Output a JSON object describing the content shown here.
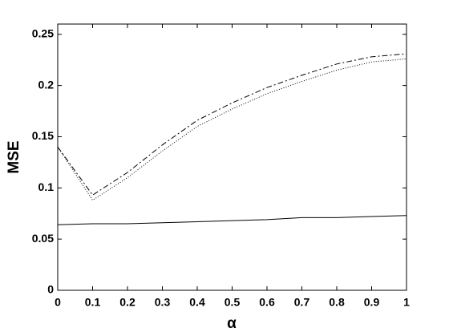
{
  "chart_data": {
    "type": "line",
    "x_label": "α",
    "y_label": "MSE",
    "x": [
      0,
      0.1,
      0.2,
      0.3,
      0.4,
      0.5,
      0.6,
      0.7,
      0.8,
      0.9,
      1
    ],
    "series": [
      {
        "color": "#000000",
        "dash": "dashed",
        "values": [
          0.14,
          0.093,
          0.115,
          0.142,
          0.166,
          0.183,
          0.198,
          0.21,
          0.221,
          0.228,
          0.231
        ]
      },
      {
        "color": "#000000",
        "dash": "dotted",
        "values": [
          0.14,
          0.088,
          0.11,
          0.136,
          0.16,
          0.177,
          0.192,
          0.204,
          0.215,
          0.223,
          0.226
        ]
      },
      {
        "color": "#000000",
        "dash": "solid",
        "values": [
          0.064,
          0.065,
          0.065,
          0.066,
          0.067,
          0.068,
          0.069,
          0.071,
          0.071,
          0.072,
          0.073
        ]
      }
    ],
    "xlim": [
      0,
      1
    ],
    "xticks": [
      0,
      0.1,
      0.2,
      0.3,
      0.4,
      0.5,
      0.6,
      0.7,
      0.8,
      0.9,
      1
    ],
    "ylim": [
      0,
      0.26
    ],
    "yticks": [
      0,
      0.05,
      0.1,
      0.15,
      0.2,
      0.25
    ],
    "grid": false
  }
}
